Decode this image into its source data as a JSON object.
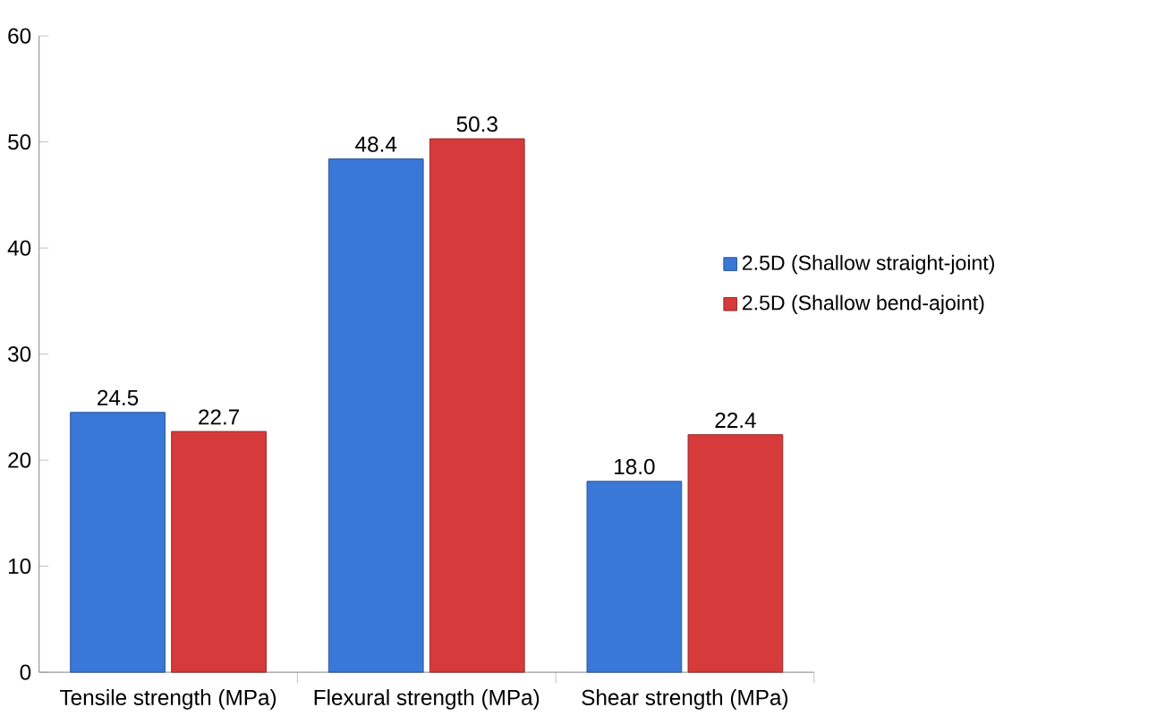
{
  "chart_data": {
    "type": "bar",
    "categories": [
      "Tensile strength (MPa)",
      "Flexural strength (MPa)",
      "Shear strength (MPa)"
    ],
    "series": [
      {
        "name": "2.5D (Shallow straight-joint)",
        "color": "#3a78d8",
        "values": [
          24.5,
          48.4,
          18.0
        ],
        "value_labels": [
          "24.5",
          "48.4",
          "18.0"
        ]
      },
      {
        "name": "2.5D (Shallow bend-ajoint)",
        "color": "#d63a3a",
        "values": [
          22.7,
          50.3,
          22.4
        ],
        "value_labels": [
          "22.7",
          "50.3",
          "22.4"
        ]
      }
    ],
    "ylim": [
      0,
      60
    ],
    "yticks": [
      0,
      10,
      20,
      30,
      40,
      50,
      60
    ],
    "grid": false,
    "legend": "right"
  }
}
